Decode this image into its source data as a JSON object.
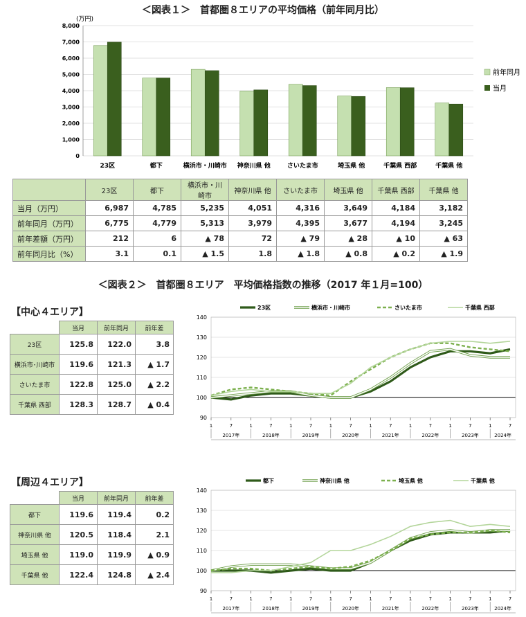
{
  "fig1": {
    "title": "＜図表１＞　首都圏８エリアの平均価格（前年同月比）",
    "unit": "(万円)",
    "legend": [
      "前年同月",
      "当月"
    ],
    "colors": {
      "prev": "#c5e0b0",
      "curr": "#3a5f1e"
    },
    "table": {
      "headers": [
        "23区",
        "都下",
        "横浜市・川崎市",
        "神奈川県 他",
        "さいたま市",
        "埼玉県 他",
        "千葉県 西部",
        "千葉県 他"
      ],
      "rows": [
        {
          "label": "当月（万円）",
          "cells": [
            "6,987",
            "4,785",
            "5,235",
            "4,051",
            "4,316",
            "3,649",
            "4,184",
            "3,182"
          ]
        },
        {
          "label": "前年同月（万円）",
          "cells": [
            "6,775",
            "4,779",
            "5,313",
            "3,979",
            "4,395",
            "3,677",
            "4,194",
            "3,245"
          ]
        },
        {
          "label": "前年差額（万円）",
          "cells": [
            "212",
            "6",
            "▲ 78",
            "72",
            "▲ 79",
            "▲ 28",
            "▲ 10",
            "▲ 63"
          ]
        },
        {
          "label": "前年同月比（%）",
          "cells": [
            "3.1",
            "0.1",
            "▲ 1.5",
            "1.8",
            "▲ 1.8",
            "▲ 0.8",
            "▲ 0.2",
            "▲ 1.9"
          ]
        }
      ]
    }
  },
  "fig2": {
    "title": "＜図表２＞　首都圏８エリア　平均価格指数の推移（2017 年１月=100）",
    "center_title": "【中心４エリア】",
    "periph_title": "【周辺４エリア】",
    "table_headers": [
      "当月",
      "前年同月",
      "前年差"
    ],
    "center_rows": [
      {
        "label": "23区",
        "cells": [
          "125.8",
          "122.0",
          "3.8"
        ]
      },
      {
        "label": "横浜市･川崎市",
        "cells": [
          "119.6",
          "121.3",
          "▲ 1.7"
        ]
      },
      {
        "label": "さいたま市",
        "cells": [
          "122.8",
          "125.0",
          "▲ 2.2"
        ]
      },
      {
        "label": "千葉県 西部",
        "cells": [
          "128.3",
          "128.7",
          "▲ 0.4"
        ]
      }
    ],
    "periph_rows": [
      {
        "label": "都下",
        "cells": [
          "119.6",
          "119.4",
          "0.2"
        ]
      },
      {
        "label": "神奈川県 他",
        "cells": [
          "120.5",
          "118.4",
          "2.1"
        ]
      },
      {
        "label": "埼玉県 他",
        "cells": [
          "119.0",
          "119.9",
          "▲ 0.9"
        ]
      },
      {
        "label": "千葉県 他",
        "cells": [
          "122.4",
          "124.8",
          "▲ 2.4"
        ]
      }
    ],
    "month_ticks": [
      "1",
      "7"
    ],
    "years": [
      "2017年",
      "2018年",
      "2019年",
      "2020年",
      "2021年",
      "2022年",
      "2023年",
      "2024年"
    ]
  },
  "chart_data": [
    {
      "type": "bar",
      "categories": [
        "23区",
        "都下",
        "横浜市・川崎市",
        "神奈川県 他",
        "さいたま市",
        "埼玉県 他",
        "千葉県 西部",
        "千葉県 他"
      ],
      "series": [
        {
          "name": "前年同月",
          "values": [
            6775,
            4779,
            5313,
            3979,
            4395,
            3677,
            4194,
            3245
          ]
        },
        {
          "name": "当月",
          "values": [
            6987,
            4785,
            5235,
            4051,
            4316,
            3649,
            4184,
            3182
          ]
        }
      ],
      "ylabel": "(万円)",
      "ylim": [
        0,
        8000
      ],
      "yticks": [
        "0",
        "1,000",
        "2,000",
        "3,000",
        "4,000",
        "5,000",
        "6,000",
        "7,000",
        "8,000"
      ],
      "legend": "right"
    },
    {
      "type": "line",
      "x": [
        "2017-01",
        "2017-07",
        "2018-01",
        "2018-07",
        "2019-01",
        "2019-07",
        "2020-01",
        "2020-07",
        "2021-01",
        "2021-07",
        "2022-01",
        "2022-07",
        "2023-01",
        "2023-07",
        "2024-01",
        "2024-07"
      ],
      "series": [
        {
          "name": "23区",
          "values": [
            100,
            99,
            101,
            102,
            102,
            101,
            100,
            100,
            103,
            108,
            115,
            120,
            123,
            123,
            122,
            124
          ]
        },
        {
          "name": "横浜市・川崎市",
          "values": [
            100,
            101,
            102,
            103,
            103,
            101,
            100,
            100,
            104,
            110,
            117,
            123,
            124,
            121,
            120,
            120
          ]
        },
        {
          "name": "さいたま市",
          "values": [
            101,
            104,
            105,
            104,
            103,
            102,
            101,
            108,
            114,
            120,
            124,
            127,
            127,
            125,
            124,
            123
          ]
        },
        {
          "name": "千葉県 西部",
          "values": [
            101,
            103,
            104,
            103,
            103,
            102,
            102,
            107,
            115,
            120,
            124,
            127,
            128,
            128,
            127,
            128
          ]
        }
      ],
      "ylim": [
        90,
        140
      ],
      "yticks": [
        90,
        100,
        110,
        120,
        130,
        140
      ],
      "legend": "top"
    },
    {
      "type": "line",
      "x": [
        "2017-01",
        "2017-07",
        "2018-01",
        "2018-07",
        "2019-01",
        "2019-07",
        "2020-01",
        "2020-07",
        "2021-01",
        "2021-07",
        "2022-01",
        "2022-07",
        "2023-01",
        "2023-07",
        "2024-01",
        "2024-07"
      ],
      "series": [
        {
          "name": "都下",
          "values": [
            100,
            100,
            100,
            99,
            100,
            101,
            100,
            100,
            104,
            110,
            115,
            118,
            119,
            119,
            119,
            120
          ]
        },
        {
          "name": "神奈川県 他",
          "values": [
            100,
            102,
            103,
            103,
            103,
            102,
            101,
            101,
            104,
            110,
            116,
            119,
            120,
            119,
            120,
            120
          ]
        },
        {
          "name": "埼玉県 他",
          "values": [
            100,
            101,
            101,
            100,
            101,
            102,
            101,
            102,
            105,
            110,
            116,
            118,
            119,
            119,
            120,
            119
          ]
        },
        {
          "name": "千葉県 他",
          "values": [
            99,
            99,
            100,
            100,
            102,
            104,
            110,
            110,
            113,
            117,
            122,
            124,
            125,
            122,
            123,
            122
          ]
        }
      ],
      "ylim": [
        90,
        140
      ],
      "yticks": [
        90,
        100,
        110,
        120,
        130,
        140
      ],
      "legend": "top"
    }
  ]
}
